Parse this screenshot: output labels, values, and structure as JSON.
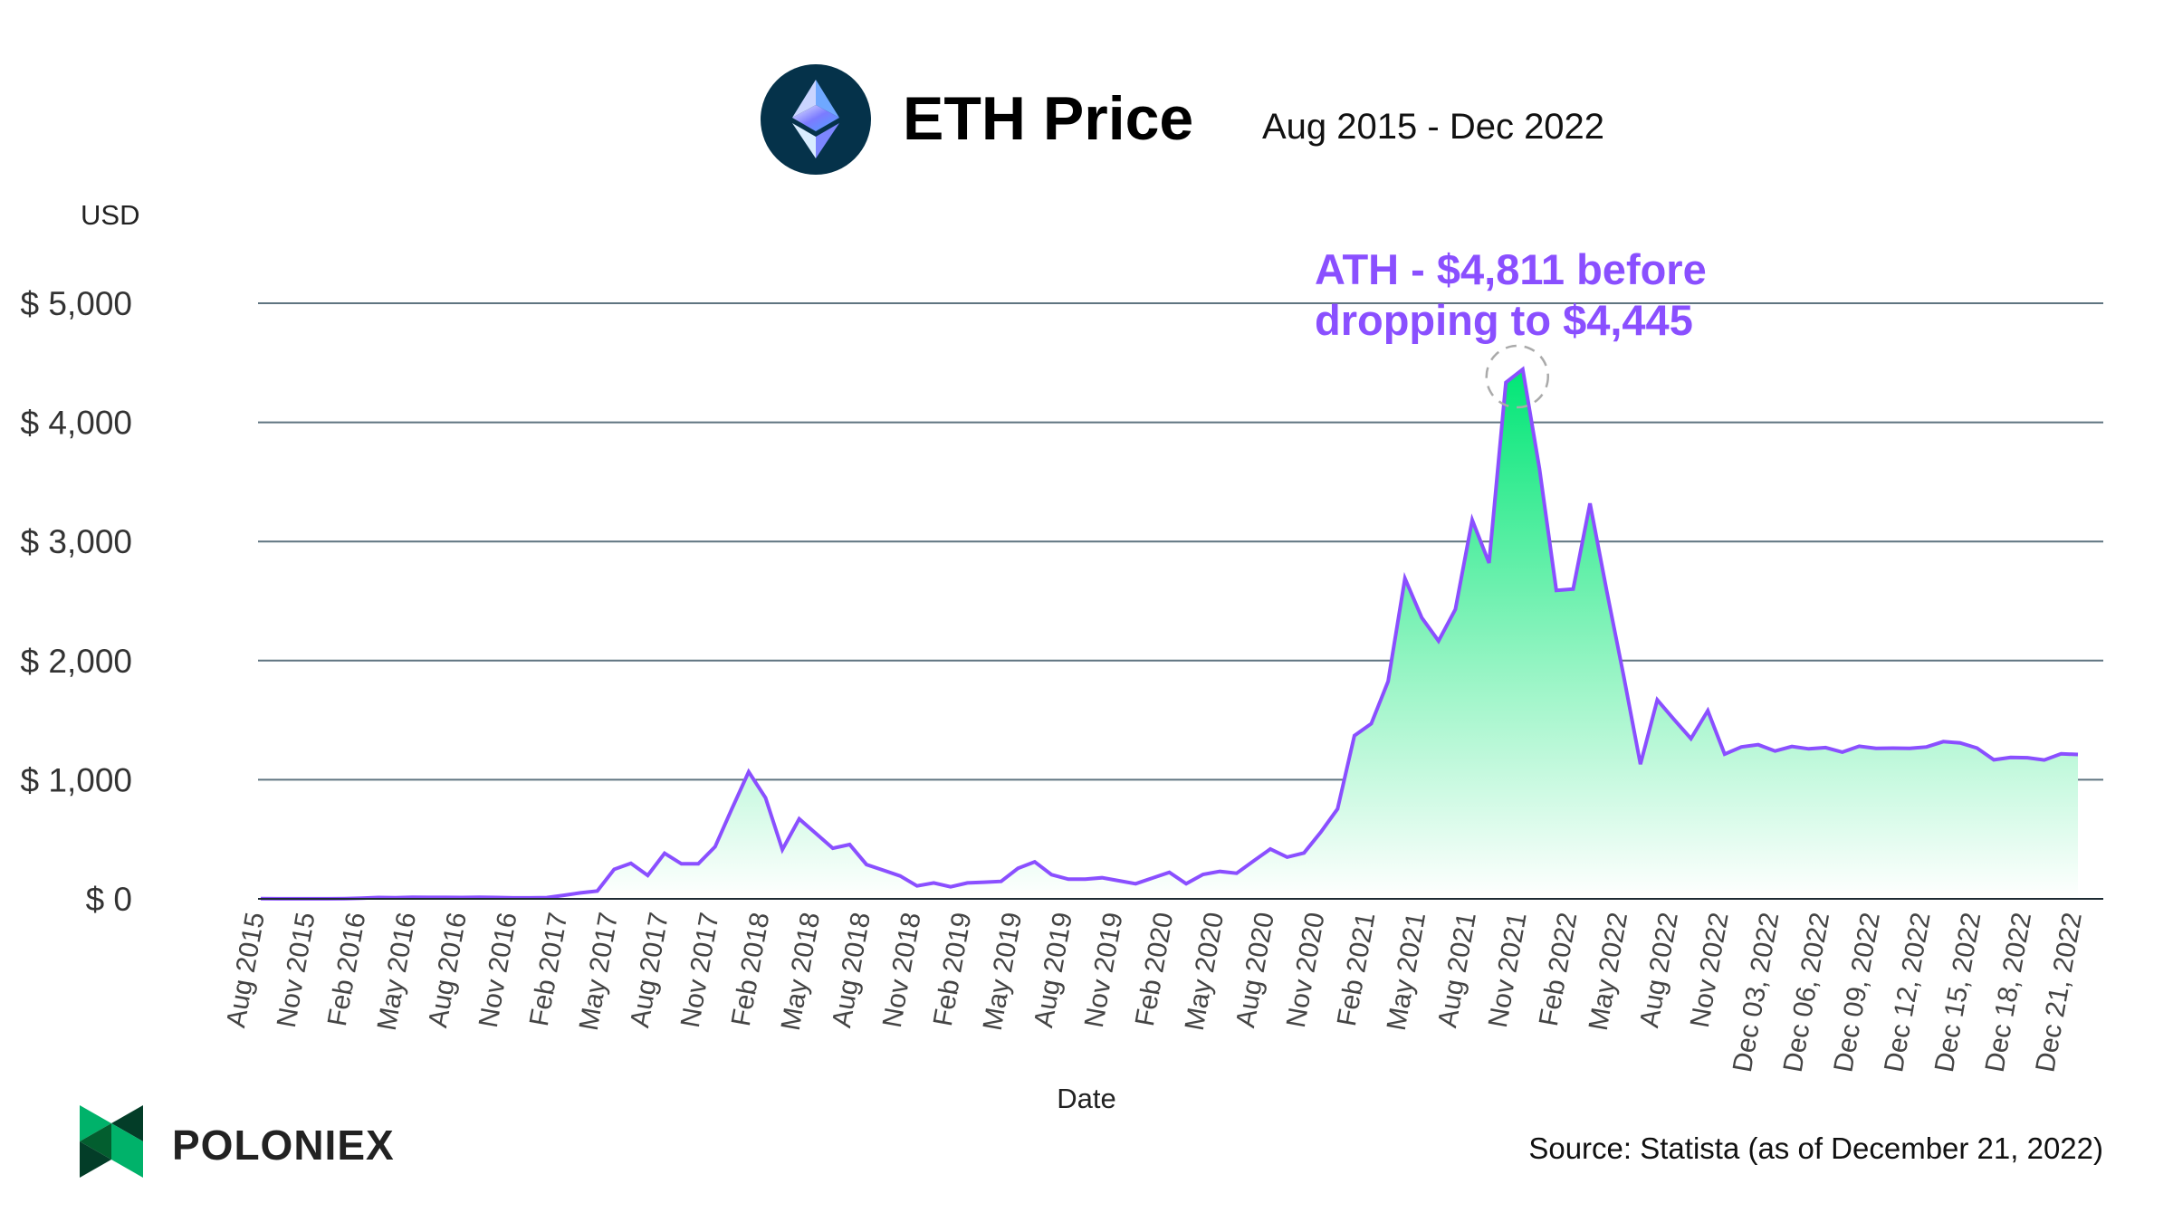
{
  "header": {
    "title": "ETH Price",
    "subtitle": "Aug 2015 - Dec 2022",
    "logo_icon": "ethereum-logo"
  },
  "footer": {
    "brand": "POLONIEX",
    "source": "Source: Statista (as of December 21, 2022)"
  },
  "colors": {
    "line": "#8a4fff",
    "fill_top": "#00e676",
    "annotation": "#8a4fff",
    "grid": "#5f7480",
    "logo_bg": "#05324a"
  },
  "annotation": {
    "line1": "ATH - $4,811 before",
    "line2": "dropping to $4,445",
    "target": "Nov 2021"
  },
  "chart_data": {
    "type": "area",
    "title": "ETH Price",
    "xlabel": "Date",
    "ylabel": "USD",
    "ylim": [
      0,
      5000
    ],
    "yticks": [
      0,
      1000,
      2000,
      3000,
      4000,
      5000
    ],
    "ytick_labels": [
      "$ 0",
      "$ 1,000",
      "$ 2,000",
      "$ 3,000",
      "$ 4,000",
      "$ 5,000"
    ],
    "grid": true,
    "categories": [
      "Aug 2015",
      "Sep 2015",
      "Oct 2015",
      "Nov 2015",
      "Dec 2015",
      "Jan 2016",
      "Feb 2016",
      "Mar 2016",
      "Apr 2016",
      "May 2016",
      "Jun 2016",
      "Jul 2016",
      "Aug 2016",
      "Sep 2016",
      "Oct 2016",
      "Nov 2016",
      "Dec 2016",
      "Jan 2017",
      "Feb 2017",
      "Mar 2017",
      "Apr 2017",
      "May 2017",
      "Jun 2017",
      "Jul 2017",
      "Aug 2017",
      "Sep 2017",
      "Oct 2017",
      "Nov 2017",
      "Dec 2017",
      "Jan 2018",
      "Feb 2018",
      "Mar 2018",
      "Apr 2018",
      "May 2018",
      "Jun 2018",
      "Jul 2018",
      "Aug 2018",
      "Sep 2018",
      "Oct 2018",
      "Nov 2018",
      "Dec 2018",
      "Jan 2019",
      "Feb 2019",
      "Mar 2019",
      "Apr 2019",
      "May 2019",
      "Jun 2019",
      "Jul 2019",
      "Aug 2019",
      "Sep 2019",
      "Oct 2019",
      "Nov 2019",
      "Dec 2019",
      "Jan 2020",
      "Feb 2020",
      "Mar 2020",
      "Apr 2020",
      "May 2020",
      "Jun 2020",
      "Jul 2020",
      "Aug 2020",
      "Sep 2020",
      "Oct 2020",
      "Nov 2020",
      "Dec 2020",
      "Jan 2021",
      "Feb 2021",
      "Mar 2021",
      "Apr 2021",
      "May 2021",
      "Jun 2021",
      "Jul 2021",
      "Aug 2021",
      "Sep 2021",
      "Oct 2021",
      "Nov 2021",
      "Dec 2021",
      "Jan 2022",
      "Feb 2022",
      "Mar 2022",
      "Apr 2022",
      "May 2022",
      "Jun 2022",
      "Jul 2022",
      "Aug 2022",
      "Sep 2022",
      "Oct 2022",
      "Nov 2022",
      "Dec 01, 2022",
      "Dec 02, 2022",
      "Dec 03, 2022",
      "Dec 04, 2022",
      "Dec 05, 2022",
      "Dec 06, 2022",
      "Dec 07, 2022",
      "Dec 08, 2022",
      "Dec 09, 2022",
      "Dec 10, 2022",
      "Dec 11, 2022",
      "Dec 12, 2022",
      "Dec 13, 2022",
      "Dec 14, 2022",
      "Dec 15, 2022",
      "Dec 16, 2022",
      "Dec 17, 2022",
      "Dec 18, 2022",
      "Dec 19, 2022",
      "Dec 20, 2022",
      "Dec 21, 2022"
    ],
    "values": [
      1.2,
      0.9,
      1.0,
      0.9,
      0.9,
      2.2,
      5.5,
      11.5,
      8.8,
      13,
      12,
      12.5,
      11.5,
      13,
      11.3,
      8.3,
      8.2,
      10.7,
      30,
      50,
      66,
      248,
      299,
      197,
      382,
      294,
      294,
      438,
      755,
      1066,
      848,
      413,
      671,
      548,
      425,
      456,
      288,
      240,
      192,
      109,
      134,
      101,
      134,
      140,
      147,
      256,
      311,
      203,
      165,
      165,
      177,
      152,
      127,
      175,
      223,
      127,
      205,
      230,
      215,
      317,
      418,
      350,
      385,
      560,
      755,
      1370,
      1470,
      1825,
      2690,
      2360,
      2165,
      2430,
      3180,
      2820,
      4335,
      4445,
      3610,
      2590,
      2600,
      3320,
      2580,
      1870,
      1130,
      1670,
      1505,
      1345,
      1580,
      1215,
      1275,
      1294,
      1241,
      1279,
      1259,
      1270,
      1232,
      1281,
      1264,
      1265,
      1264,
      1275,
      1320,
      1309,
      1266,
      1167,
      1187,
      1185,
      1166,
      1217,
      1212
    ],
    "xtick_labels": [
      "Aug 2015",
      "Nov 2015",
      "Feb 2016",
      "May 2016",
      "Aug 2016",
      "Nov 2016",
      "Feb 2017",
      "May 2017",
      "Aug 2017",
      "Nov 2017",
      "Feb 2018",
      "May 2018",
      "Aug 2018",
      "Nov 2018",
      "Feb 2019",
      "May 2019",
      "Aug 2019",
      "Nov 2019",
      "Feb 2020",
      "May 2020",
      "Aug 2020",
      "Nov 2020",
      "Feb 2021",
      "May 2021",
      "Aug 2021",
      "Nov 2021",
      "Feb 2022",
      "May 2022",
      "Aug 2022",
      "Nov 2022",
      "Dec 03, 2022",
      "Dec 06, 2022",
      "Dec 09, 2022",
      "Dec 12, 2022",
      "Dec 15, 2022",
      "Dec 18, 2022",
      "Dec 21, 2022"
    ]
  }
}
